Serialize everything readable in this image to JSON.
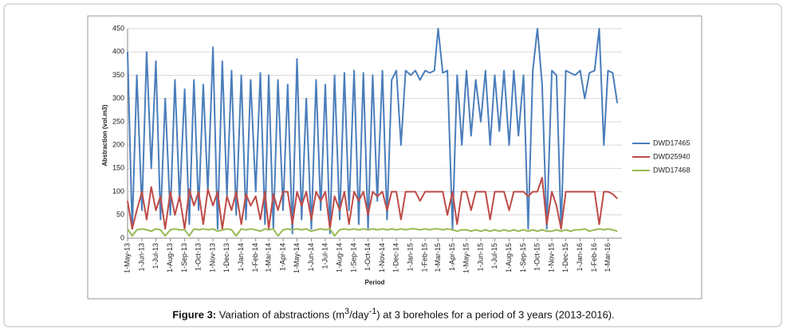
{
  "chart_data": {
    "type": "line",
    "ylabel": "Abstraction (vol.m3)",
    "xlabel": "Period",
    "caption": {
      "label": "Figure 3:",
      "parts": [
        " Variation of abstractions (m",
        "3",
        "/day",
        "-1",
        ") at 3 boreholes for a period of 3 years (2013-2016)."
      ]
    },
    "grid": true,
    "legend": "right",
    "ylim": [
      0,
      450
    ],
    "yticks": [
      0,
      50,
      100,
      150,
      200,
      250,
      300,
      350,
      400,
      450
    ],
    "xlim": [
      "2013-05-01",
      "2016-03-31"
    ],
    "xticks": [
      {
        "value": "2013-05-01",
        "label": "1-May-13"
      },
      {
        "value": "2013-06-01",
        "label": "1-Jun-13"
      },
      {
        "value": "2013-07-01",
        "label": "1-Jul-13"
      },
      {
        "value": "2013-08-01",
        "label": "1-Aug-13"
      },
      {
        "value": "2013-09-01",
        "label": "1-Sep-13"
      },
      {
        "value": "2013-10-01",
        "label": "1-Oct-13"
      },
      {
        "value": "2013-11-01",
        "label": "1-Nov-13"
      },
      {
        "value": "2013-12-01",
        "label": "1-Dec-13"
      },
      {
        "value": "2014-01-01",
        "label": "1-Jan-14"
      },
      {
        "value": "2014-02-01",
        "label": "1-Feb-14"
      },
      {
        "value": "2014-03-01",
        "label": "1-Mar-14"
      },
      {
        "value": "2014-04-01",
        "label": "1-Apr-14"
      },
      {
        "value": "2014-05-01",
        "label": "1-May-14"
      },
      {
        "value": "2014-06-01",
        "label": "1-Jun-14"
      },
      {
        "value": "2014-07-01",
        "label": "1-Jul-14"
      },
      {
        "value": "2014-08-01",
        "label": "1-Aug-14"
      },
      {
        "value": "2014-09-01",
        "label": "1-Sep-14"
      },
      {
        "value": "2014-10-01",
        "label": "1-Oct-14"
      },
      {
        "value": "2014-11-01",
        "label": "1-Nov-14"
      },
      {
        "value": "2014-12-01",
        "label": "1-Dec-14"
      },
      {
        "value": "2015-01-01",
        "label": "1-Jan-15"
      },
      {
        "value": "2015-02-01",
        "label": "1-Feb-15"
      },
      {
        "value": "2015-03-01",
        "label": "1-Mar-15"
      },
      {
        "value": "2015-04-01",
        "label": "1-Apr-15"
      },
      {
        "value": "2015-05-01",
        "label": "1-May-15"
      },
      {
        "value": "2015-06-01",
        "label": "1-Jun-15"
      },
      {
        "value": "2015-07-01",
        "label": "1-Jul-15"
      },
      {
        "value": "2015-08-01",
        "label": "1-Aug-15"
      },
      {
        "value": "2015-09-01",
        "label": "1-Sep-15"
      },
      {
        "value": "2015-10-01",
        "label": "1-Oct-15"
      },
      {
        "value": "2015-11-01",
        "label": "1-Nov-15"
      },
      {
        "value": "2015-12-01",
        "label": "1-Dec-15"
      },
      {
        "value": "2016-01-01",
        "label": "1-Jan-16"
      },
      {
        "value": "2016-02-01",
        "label": "1-Feb-16"
      },
      {
        "value": "2016-03-01",
        "label": "1-Mar-16"
      }
    ],
    "x": [
      "2013-05-01",
      "2013-05-11",
      "2013-05-21",
      "2013-06-01",
      "2013-06-11",
      "2013-06-21",
      "2013-07-01",
      "2013-07-11",
      "2013-07-21",
      "2013-08-01",
      "2013-08-11",
      "2013-08-21",
      "2013-09-01",
      "2013-09-11",
      "2013-09-21",
      "2013-10-01",
      "2013-10-11",
      "2013-10-21",
      "2013-11-01",
      "2013-11-11",
      "2013-11-21",
      "2013-12-01",
      "2013-12-11",
      "2013-12-21",
      "2014-01-01",
      "2014-01-11",
      "2014-01-21",
      "2014-02-01",
      "2014-02-11",
      "2014-02-21",
      "2014-03-01",
      "2014-03-11",
      "2014-03-21",
      "2014-04-01",
      "2014-04-11",
      "2014-04-21",
      "2014-05-01",
      "2014-05-11",
      "2014-05-21",
      "2014-06-01",
      "2014-06-11",
      "2014-06-21",
      "2014-07-01",
      "2014-07-11",
      "2014-07-21",
      "2014-08-01",
      "2014-08-11",
      "2014-08-21",
      "2014-09-01",
      "2014-09-11",
      "2014-09-21",
      "2014-10-01",
      "2014-10-11",
      "2014-10-21",
      "2014-11-01",
      "2014-11-11",
      "2014-11-21",
      "2014-12-01",
      "2014-12-11",
      "2014-12-21",
      "2015-01-01",
      "2015-01-11",
      "2015-01-21",
      "2015-02-01",
      "2015-02-11",
      "2015-02-21",
      "2015-03-01",
      "2015-03-11",
      "2015-03-21",
      "2015-04-01",
      "2015-04-11",
      "2015-04-21",
      "2015-05-01",
      "2015-05-11",
      "2015-05-21",
      "2015-06-01",
      "2015-06-11",
      "2015-06-21",
      "2015-07-01",
      "2015-07-11",
      "2015-07-21",
      "2015-08-01",
      "2015-08-11",
      "2015-08-21",
      "2015-09-01",
      "2015-09-11",
      "2015-09-21",
      "2015-10-01",
      "2015-10-11",
      "2015-10-21",
      "2015-11-01",
      "2015-11-11",
      "2015-11-21",
      "2015-12-01",
      "2015-12-11",
      "2015-12-21",
      "2016-01-01",
      "2016-01-11",
      "2016-01-21",
      "2016-02-01",
      "2016-02-11",
      "2016-02-21",
      "2016-03-01",
      "2016-03-11",
      "2016-03-21"
    ],
    "series": [
      {
        "name": "DWD17465",
        "color": "#4a7ebb",
        "values": [
          400,
          20,
          350,
          60,
          400,
          150,
          380,
          40,
          300,
          50,
          340,
          80,
          320,
          30,
          340,
          60,
          330,
          100,
          410,
          20,
          380,
          90,
          360,
          50,
          350,
          40,
          340,
          100,
          355,
          30,
          350,
          20,
          340,
          60,
          330,
          10,
          385,
          40,
          300,
          20,
          340,
          60,
          330,
          10,
          350,
          40,
          355,
          60,
          360,
          30,
          355,
          20,
          350,
          80,
          360,
          40,
          340,
          360,
          200,
          360,
          350,
          360,
          340,
          360,
          355,
          360,
          450,
          355,
          360,
          20,
          350,
          200,
          360,
          220,
          340,
          250,
          360,
          200,
          350,
          230,
          360,
          200,
          360,
          220,
          350,
          20,
          360,
          450,
          330,
          20,
          360,
          350,
          20,
          360,
          355,
          350,
          360,
          300,
          355,
          360,
          450,
          200,
          360,
          355,
          290
        ]
      },
      {
        "name": "DWD25940",
        "color": "#be4b48",
        "values": [
          80,
          20,
          60,
          100,
          40,
          110,
          60,
          90,
          20,
          100,
          50,
          90,
          20,
          105,
          70,
          100,
          30,
          105,
          70,
          100,
          20,
          90,
          60,
          100,
          30,
          95,
          70,
          90,
          40,
          100,
          20,
          95,
          60,
          100,
          100,
          30,
          100,
          70,
          100,
          40,
          100,
          80,
          100,
          20,
          90,
          60,
          100,
          30,
          100,
          80,
          100,
          50,
          100,
          90,
          100,
          60,
          100,
          100,
          40,
          100,
          100,
          100,
          80,
          100,
          100,
          100,
          100,
          100,
          50,
          100,
          30,
          100,
          100,
          60,
          100,
          100,
          100,
          40,
          100,
          100,
          100,
          60,
          100,
          100,
          100,
          90,
          100,
          100,
          130,
          30,
          100,
          70,
          20,
          100,
          100,
          100,
          100,
          100,
          100,
          100,
          30,
          100,
          100,
          95,
          85
        ]
      },
      {
        "name": "DWD17468",
        "color": "#98b954",
        "values": [
          20,
          5,
          18,
          20,
          18,
          15,
          20,
          18,
          5,
          18,
          20,
          18,
          18,
          5,
          20,
          18,
          20,
          18,
          20,
          15,
          18,
          20,
          18,
          5,
          20,
          18,
          20,
          18,
          15,
          20,
          18,
          20,
          5,
          18,
          20,
          18,
          20,
          18,
          20,
          15,
          18,
          20,
          18,
          20,
          5,
          18,
          20,
          18,
          20,
          18,
          20,
          18,
          20,
          18,
          20,
          18,
          20,
          18,
          20,
          18,
          20,
          20,
          18,
          20,
          18,
          20,
          20,
          18,
          20,
          18,
          15,
          18,
          18,
          15,
          18,
          15,
          18,
          15,
          18,
          15,
          18,
          15,
          18,
          15,
          18,
          15,
          18,
          15,
          18,
          15,
          15,
          18,
          15,
          18,
          15,
          18,
          18,
          20,
          15,
          18,
          20,
          18,
          20,
          18,
          15
        ]
      }
    ]
  }
}
